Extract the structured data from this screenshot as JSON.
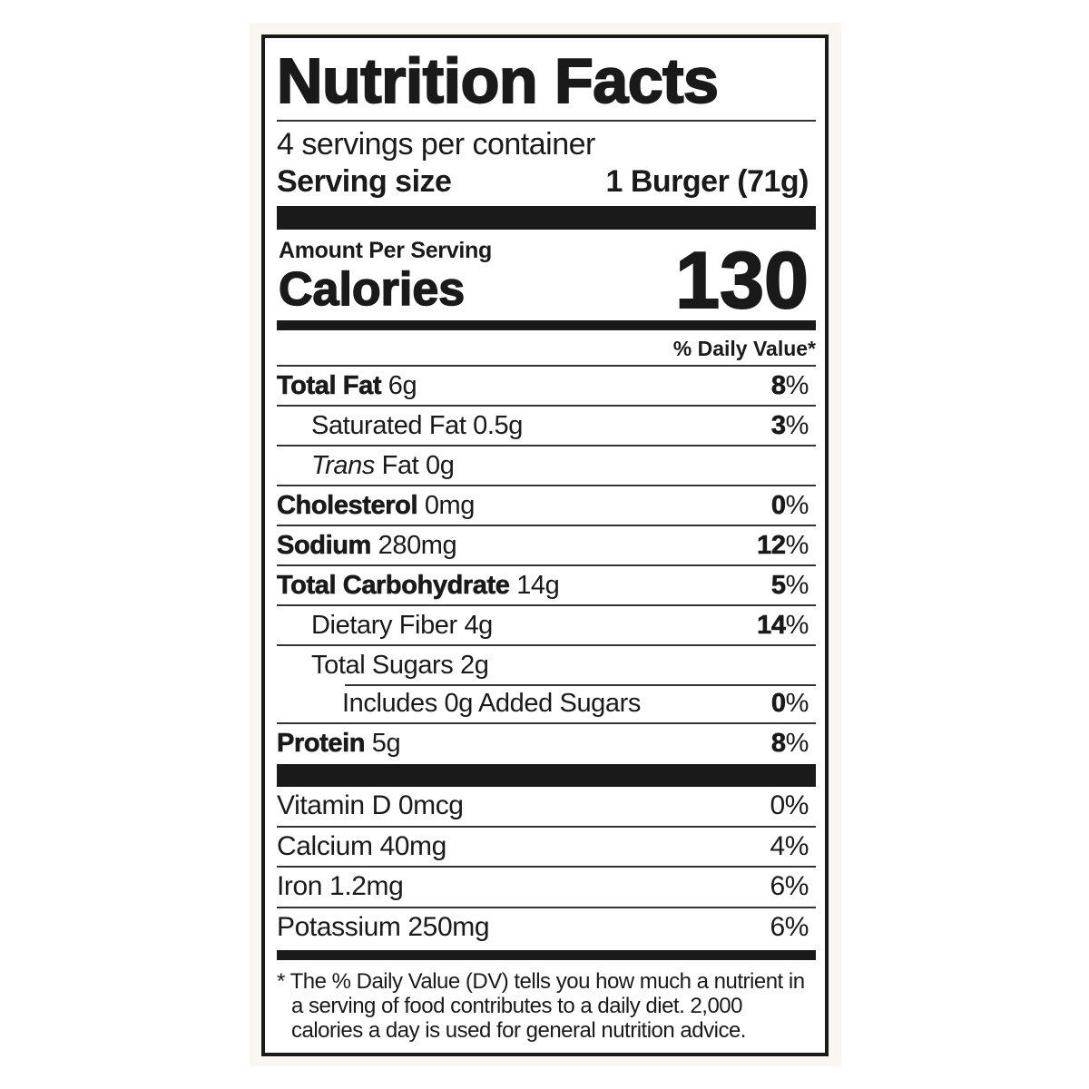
{
  "title": "Nutrition Facts",
  "servings_per_container": "4 servings per container",
  "serving_size": {
    "label": "Serving size",
    "value": "1 Burger (71g)"
  },
  "amount_per_serving": "Amount Per Serving",
  "calories": {
    "label": "Calories",
    "value": "130"
  },
  "daily_value_header": "% Daily Value*",
  "nutrients": [
    {
      "name": "Total Fat",
      "amount": "6g",
      "dv": "8",
      "pct": "%"
    },
    {
      "name": "Saturated Fat 0.5g",
      "dv": "3",
      "pct": "%"
    },
    {
      "name_italic": "Trans",
      "name_rest": " Fat 0g"
    },
    {
      "name": "Cholesterol",
      "amount": "0mg",
      "dv": "0",
      "pct": "%"
    },
    {
      "name": "Sodium",
      "amount": "280mg",
      "dv": "12",
      "pct": "%"
    },
    {
      "name": "Total Carbohydrate",
      "amount": "14g",
      "dv": "5",
      "pct": "%"
    },
    {
      "name": "Dietary Fiber 4g",
      "dv": "14",
      "pct": "%"
    },
    {
      "name": "Total Sugars 2g"
    },
    {
      "name": "Includes 0g Added Sugars",
      "dv": "0",
      "pct": "%"
    },
    {
      "name": "Protein",
      "amount": "5g",
      "dv": "8",
      "pct": "%"
    }
  ],
  "vitamins": [
    {
      "name": "Vitamin D 0mcg",
      "dv": "0%"
    },
    {
      "name": "Calcium 40mg",
      "dv": "4%"
    },
    {
      "name": "Iron 1.2mg",
      "dv": "6%"
    },
    {
      "name": "Potassium 250mg",
      "dv": "6%"
    }
  ],
  "footnote": "* The % Daily Value (DV) tells you how much a nutrient in a serving of food contributes to a daily diet. 2,000 calories a day is used for general nutrition advice.",
  "colors": {
    "ink": "#1a1a1a",
    "background": "#faf6f2"
  }
}
